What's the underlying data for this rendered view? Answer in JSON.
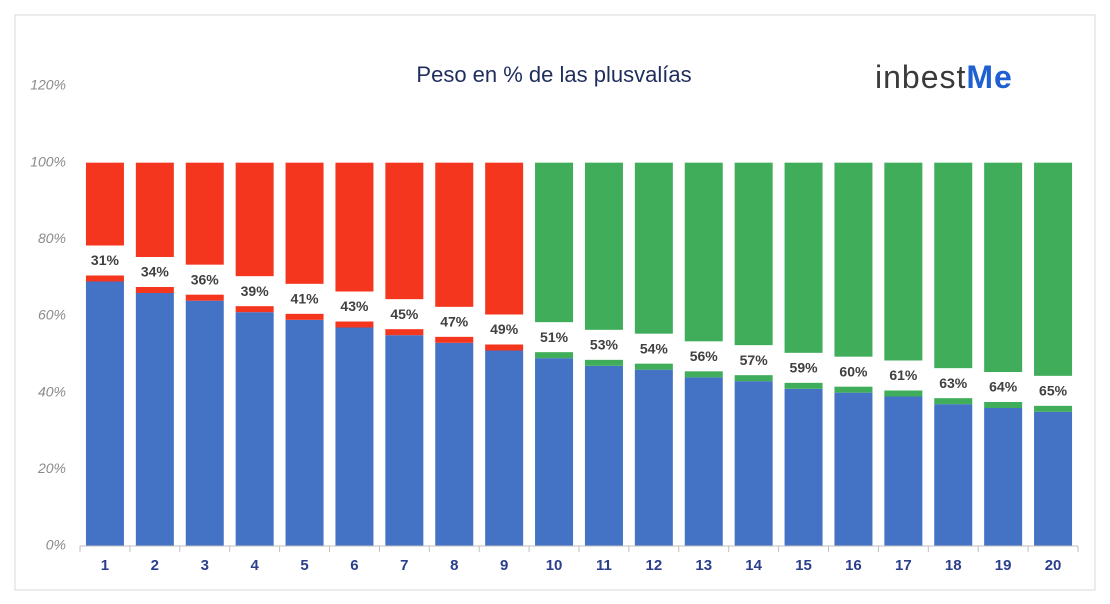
{
  "chart_data": {
    "type": "stacked_bar",
    "title": "Peso en % de las plusvalías",
    "logo": {
      "part1": "inbest",
      "part2": "Me"
    },
    "categories": [
      "1",
      "2",
      "3",
      "4",
      "5",
      "6",
      "7",
      "8",
      "9",
      "10",
      "11",
      "12",
      "13",
      "14",
      "15",
      "16",
      "17",
      "18",
      "19",
      "20"
    ],
    "series": [
      {
        "color": "#4472c4",
        "values": [
          69,
          66,
          64,
          61,
          59,
          57,
          55,
          53,
          51,
          49,
          47,
          46,
          44,
          43,
          41,
          40,
          39,
          37,
          36,
          35
        ]
      },
      {
        "colors": [
          "#f4361e",
          "#f4361e",
          "#f4361e",
          "#f4361e",
          "#f4361e",
          "#f4361e",
          "#f4361e",
          "#f4361e",
          "#f4361e",
          "#40ad5b",
          "#40ad5b",
          "#40ad5b",
          "#40ad5b",
          "#40ad5b",
          "#40ad5b",
          "#40ad5b",
          "#40ad5b",
          "#40ad5b",
          "#40ad5b",
          "#40ad5b"
        ],
        "values": [
          31,
          34,
          36,
          39,
          41,
          43,
          45,
          47,
          49,
          51,
          53,
          54,
          56,
          57,
          59,
          60,
          61,
          63,
          64,
          65
        ],
        "value_labels": [
          "31%",
          "34%",
          "36%",
          "39%",
          "41%",
          "43%",
          "45%",
          "47%",
          "49%",
          "51%",
          "53%",
          "54%",
          "56%",
          "57%",
          "59%",
          "60%",
          "61%",
          "63%",
          "64%",
          "65%"
        ]
      }
    ],
    "ylim": [
      0,
      120
    ],
    "yticks": [
      {
        "value": 0,
        "label": "0%"
      },
      {
        "value": 20,
        "label": "20%"
      },
      {
        "value": 40,
        "label": "40%"
      },
      {
        "value": 60,
        "label": "60%"
      },
      {
        "value": 80,
        "label": "80%"
      },
      {
        "value": 100,
        "label": "100%"
      },
      {
        "value": 120,
        "label": "120%"
      }
    ],
    "grid": false
  }
}
